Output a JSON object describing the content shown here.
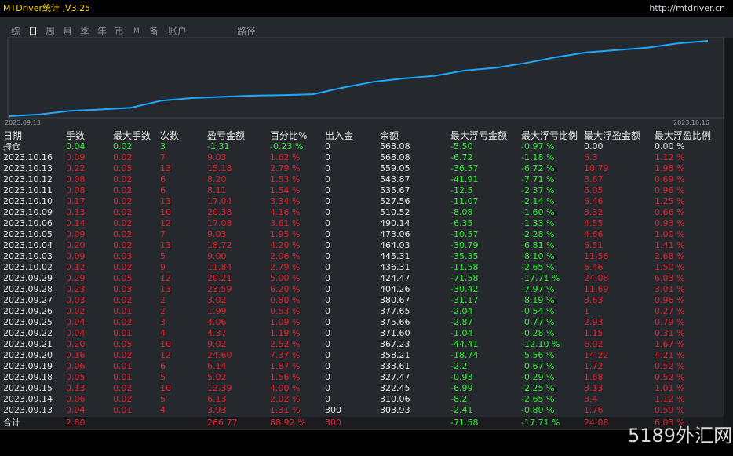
{
  "header": {
    "title": "MTDriver统计 ,V3.25",
    "url": "http://mtdriver.cn"
  },
  "tabs": [
    "综",
    "日",
    "周",
    "月",
    "季",
    "年",
    "币",
    "M",
    "备",
    "账户",
    "路径"
  ],
  "chart": {
    "start_label": "2023.09.13",
    "end_label": "2023.10.16"
  },
  "table": {
    "columns": [
      "日期",
      "手数",
      "最大手数",
      "次数",
      "盈亏金额",
      "百分比%",
      "出入金",
      "余额",
      "最大浮亏金额",
      "最大浮亏比例",
      "最大浮盈金额",
      "最大浮盈比例"
    ],
    "rows": [
      [
        "持仓",
        "0.04",
        "0.02",
        "3",
        "-1.31",
        "-0.23 %",
        "0",
        "568.08",
        "-5.50",
        "-0.97 %",
        "0.00",
        "0.00 %"
      ],
      [
        "2023.10.16",
        "0.09",
        "0.02",
        "7",
        "9.03",
        "1.62 %",
        "0",
        "568.08",
        "-6.72",
        "-1.18 %",
        "6.3",
        "1.12 %"
      ],
      [
        "2023.10.13",
        "0.22",
        "0.05",
        "13",
        "15.18",
        "2.79 %",
        "0",
        "559.05",
        "-36.57",
        "-6.72 %",
        "10.79",
        "1.98 %"
      ],
      [
        "2023.10.12",
        "0.08",
        "0.02",
        "6",
        "8.20",
        "1.53 %",
        "0",
        "543.87",
        "-41.91",
        "-7.71 %",
        "3.67",
        "0.69 %"
      ],
      [
        "2023.10.11",
        "0.08",
        "0.02",
        "6",
        "8.11",
        "1.54 %",
        "0",
        "535.67",
        "-12.5",
        "-2.37 %",
        "5.05",
        "0.96 %"
      ],
      [
        "2023.10.10",
        "0.17",
        "0.02",
        "13",
        "17.04",
        "3.34 %",
        "0",
        "527.56",
        "-11.07",
        "-2.14 %",
        "6.46",
        "1.25 %"
      ],
      [
        "2023.10.09",
        "0.13",
        "0.02",
        "10",
        "20.38",
        "4.16 %",
        "0",
        "510.52",
        "-8.08",
        "-1.60 %",
        "3.32",
        "0.66 %"
      ],
      [
        "2023.10.06",
        "0.14",
        "0.02",
        "12",
        "17.08",
        "3.61 %",
        "0",
        "490.14",
        "-6.35",
        "-1.33 %",
        "4.55",
        "0.93 %"
      ],
      [
        "2023.10.05",
        "0.09",
        "0.02",
        "7",
        "9.03",
        "1.95 %",
        "0",
        "473.06",
        "-10.57",
        "-2.28 %",
        "4.66",
        "1.00 %"
      ],
      [
        "2023.10.04",
        "0.20",
        "0.02",
        "13",
        "18.72",
        "4.20 %",
        "0",
        "464.03",
        "-30.79",
        "-6.81 %",
        "6.51",
        "1.41 %"
      ],
      [
        "2023.10.03",
        "0.09",
        "0.03",
        "5",
        "9.00",
        "2.06 %",
        "0",
        "445.31",
        "-35.35",
        "-8.10 %",
        "11.56",
        "2.68 %"
      ],
      [
        "2023.10.02",
        "0.12",
        "0.02",
        "9",
        "11.84",
        "2.79 %",
        "0",
        "436.31",
        "-11.58",
        "-2.65 %",
        "6.46",
        "1.50 %"
      ],
      [
        "2023.09.29",
        "0.29",
        "0.05",
        "12",
        "20.21",
        "5.00 %",
        "0",
        "424.47",
        "-71.58",
        "-17.71 %",
        "24.08",
        "6.03 %"
      ],
      [
        "2023.09.28",
        "0.23",
        "0.03",
        "13",
        "23.59",
        "6.20 %",
        "0",
        "404.26",
        "-30.42",
        "-7.97 %",
        "11.69",
        "3.01 %"
      ],
      [
        "2023.09.27",
        "0.03",
        "0.02",
        "2",
        "3.02",
        "0.80 %",
        "0",
        "380.67",
        "-31.17",
        "-8.19 %",
        "3.63",
        "0.96 %"
      ],
      [
        "2023.09.26",
        "0.02",
        "0.01",
        "2",
        "1.99",
        "0.53 %",
        "0",
        "377.65",
        "-2.04",
        "-0.54 %",
        "1",
        "0.27 %"
      ],
      [
        "2023.09.25",
        "0.04",
        "0.02",
        "3",
        "4.06",
        "1.09 %",
        "0",
        "375.66",
        "-2.87",
        "-0.77 %",
        "2.93",
        "0.79 %"
      ],
      [
        "2023.09.22",
        "0.04",
        "0.01",
        "4",
        "4.37",
        "1.19 %",
        "0",
        "371.60",
        "-1.04",
        "-0.28 %",
        "1.15",
        "0.31 %"
      ],
      [
        "2023.09.21",
        "0.20",
        "0.05",
        "10",
        "9.02",
        "2.52 %",
        "0",
        "367.23",
        "-44.41",
        "-12.10 %",
        "6.02",
        "1.67 %"
      ],
      [
        "2023.09.20",
        "0.16",
        "0.02",
        "12",
        "24.60",
        "7.37 %",
        "0",
        "358.21",
        "-18.74",
        "-5.56 %",
        "14.22",
        "4.21 %"
      ],
      [
        "2023.09.19",
        "0.06",
        "0.01",
        "6",
        "6.14",
        "1.87 %",
        "0",
        "333.61",
        "-2.2",
        "-0.67 %",
        "1.72",
        "0.52 %"
      ],
      [
        "2023.09.18",
        "0.05",
        "0.01",
        "5",
        "5.02",
        "1.56 %",
        "0",
        "327.47",
        "-0.93",
        "-0.29 %",
        "1.68",
        "0.52 %"
      ],
      [
        "2023.09.15",
        "0.13",
        "0.02",
        "10",
        "12.39",
        "4.00 %",
        "0",
        "322.45",
        "-6.99",
        "-2.25 %",
        "3.13",
        "1.01 %"
      ],
      [
        "2023.09.14",
        "0.06",
        "0.02",
        "5",
        "6.13",
        "2.02 %",
        "0",
        "310.06",
        "-8.2",
        "-2.65 %",
        "3.4",
        "1.12 %"
      ],
      [
        "2023.09.13",
        "0.04",
        "0.01",
        "4",
        "3.93",
        "1.31 %",
        "300",
        "303.93",
        "-2.41",
        "-0.80 %",
        "1.76",
        "0.59 %"
      ]
    ],
    "footer": {
      "0": "合计",
      "1": "2.80",
      "4": "266.77",
      "5": "88.92 %",
      "6": "300",
      "8": "-71.58",
      "9": "-17.71 %",
      "10": "24.08",
      "11": "6.03 %"
    }
  },
  "watermark": "5189外汇网"
}
